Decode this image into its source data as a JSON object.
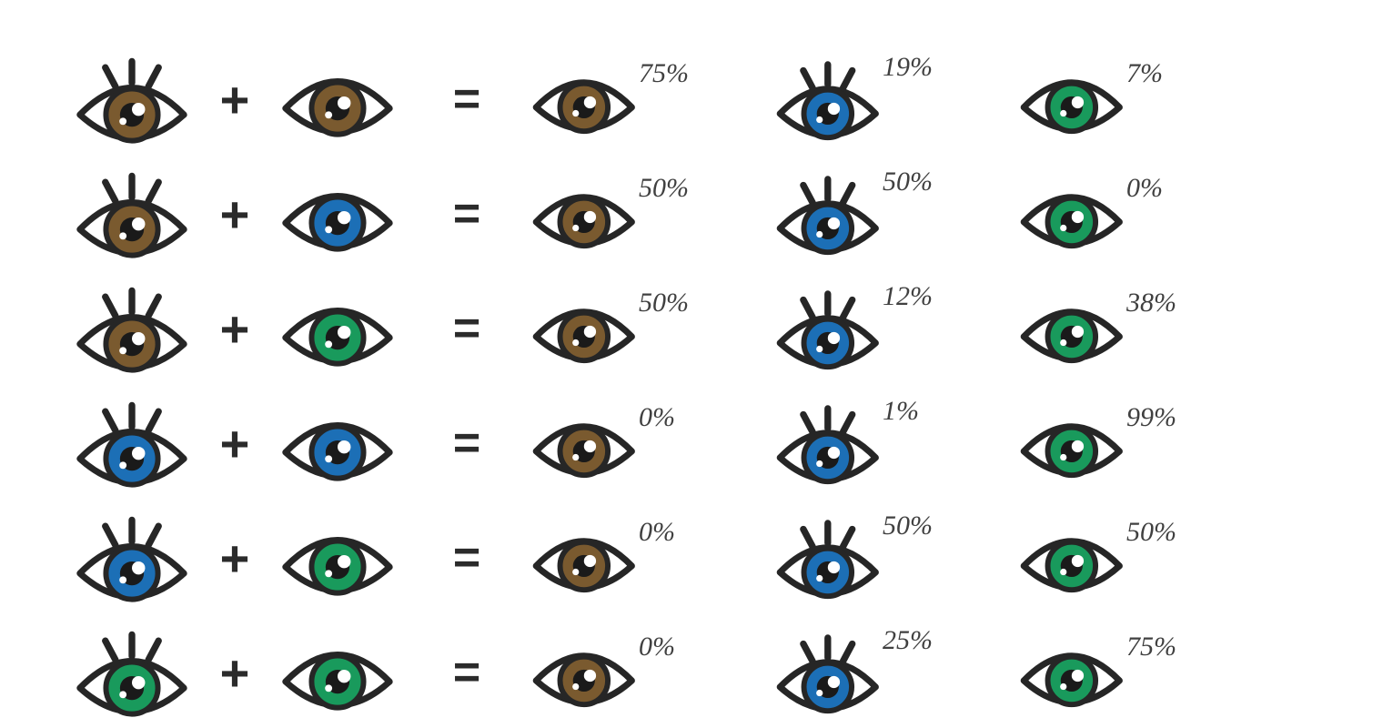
{
  "colors": {
    "brown": "#7a5a2f",
    "blue": "#1c6fb6",
    "green": "#199a5c",
    "stroke": "#262626",
    "highlight": "#ffffff",
    "pupil": "#1a1a1a",
    "text": "#404040"
  },
  "eye_icon": {
    "width": 130,
    "height": 84,
    "stroke_width": 7,
    "lash_count": 3
  },
  "percent_fontsize": 30,
  "rows": [
    {
      "parent1": {
        "color": "brown",
        "lashes": true
      },
      "parent2": {
        "color": "brown",
        "lashes": false
      },
      "outcomes": [
        {
          "color": "brown",
          "lashes": false,
          "percent": "75%"
        },
        {
          "color": "blue",
          "lashes": true,
          "percent": "19%"
        },
        {
          "color": "green",
          "lashes": false,
          "percent": "7%"
        }
      ]
    },
    {
      "parent1": {
        "color": "brown",
        "lashes": true
      },
      "parent2": {
        "color": "blue",
        "lashes": false
      },
      "outcomes": [
        {
          "color": "brown",
          "lashes": false,
          "percent": "50%"
        },
        {
          "color": "blue",
          "lashes": true,
          "percent": "50%"
        },
        {
          "color": "green",
          "lashes": false,
          "percent": "0%"
        }
      ]
    },
    {
      "parent1": {
        "color": "brown",
        "lashes": true
      },
      "parent2": {
        "color": "green",
        "lashes": false
      },
      "outcomes": [
        {
          "color": "brown",
          "lashes": false,
          "percent": "50%"
        },
        {
          "color": "blue",
          "lashes": true,
          "percent": "12%"
        },
        {
          "color": "green",
          "lashes": false,
          "percent": "38%"
        }
      ]
    },
    {
      "parent1": {
        "color": "blue",
        "lashes": true
      },
      "parent2": {
        "color": "blue",
        "lashes": false
      },
      "outcomes": [
        {
          "color": "brown",
          "lashes": false,
          "percent": "0%"
        },
        {
          "color": "blue",
          "lashes": true,
          "percent": "1%"
        },
        {
          "color": "green",
          "lashes": false,
          "percent": "99%"
        }
      ]
    },
    {
      "parent1": {
        "color": "blue",
        "lashes": true
      },
      "parent2": {
        "color": "green",
        "lashes": false
      },
      "outcomes": [
        {
          "color": "brown",
          "lashes": false,
          "percent": "0%"
        },
        {
          "color": "blue",
          "lashes": true,
          "percent": "50%"
        },
        {
          "color": "green",
          "lashes": false,
          "percent": "50%"
        }
      ]
    },
    {
      "parent1": {
        "color": "green",
        "lashes": true
      },
      "parent2": {
        "color": "green",
        "lashes": false
      },
      "outcomes": [
        {
          "color": "brown",
          "lashes": false,
          "percent": "0%"
        },
        {
          "color": "blue",
          "lashes": true,
          "percent": "25%"
        },
        {
          "color": "green",
          "lashes": false,
          "percent": "75%"
        }
      ]
    }
  ]
}
